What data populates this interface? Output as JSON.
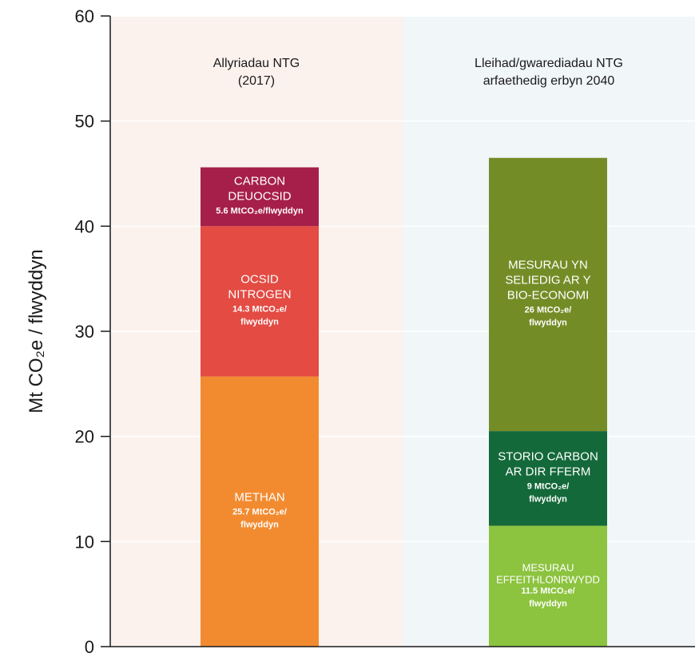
{
  "chart_data": {
    "type": "bar",
    "stacked": true,
    "ylabel": "Mt CO₂e / flwyddyn",
    "ylim": [
      0,
      60
    ],
    "yticks": [
      0,
      10,
      20,
      30,
      40,
      50,
      60
    ],
    "grid": true,
    "panels": [
      {
        "title_lines": [
          "Allyriadau NTG",
          "(2017)"
        ],
        "background": "#fbf2ee"
      },
      {
        "title_lines": [
          "Lleihad/gwarediadau NTG",
          "arfaethedig erbyn 2040"
        ],
        "background": "#f1f6f9"
      }
    ],
    "bars": [
      {
        "segments": [
          {
            "name_lines": [
              "METHAN"
            ],
            "value": 25.7,
            "value_lines": [
              "25.7 MtCO₂e/",
              "flwyddyn"
            ],
            "color": "#f28b30"
          },
          {
            "name_lines": [
              "OCSID",
              "NITROGEN"
            ],
            "value": 14.3,
            "value_lines": [
              "14.3 MtCO₂e/",
              "flwyddyn"
            ],
            "color": "#e34b43"
          },
          {
            "name_lines": [
              "CARBON",
              "DEUOCSID"
            ],
            "value": 5.6,
            "value_lines": [
              "5.6 MtCO₂e/flwyddyn"
            ],
            "color": "#a61f4a"
          }
        ]
      },
      {
        "segments": [
          {
            "name_lines": [
              "MESURAU",
              "EFFEITHLONRWYDD"
            ],
            "value": 11.5,
            "value_lines": [
              "11.5 MtCO₂e/",
              "flwyddyn"
            ],
            "color": "#8cc33f",
            "small": true
          },
          {
            "name_lines": [
              "STORIO CARBON",
              "AR DIR FFERM"
            ],
            "value": 9,
            "value_lines": [
              "9 MtCO₂e/",
              "flwyddyn"
            ],
            "color": "#14693a"
          },
          {
            "name_lines": [
              "MESURAU YN",
              "SELIEDIG AR Y",
              "BIO-ECONOMI"
            ],
            "value": 26,
            "value_lines": [
              "26 MtCO₂e/",
              "flwyddyn"
            ],
            "color": "#748c26"
          }
        ]
      }
    ]
  }
}
